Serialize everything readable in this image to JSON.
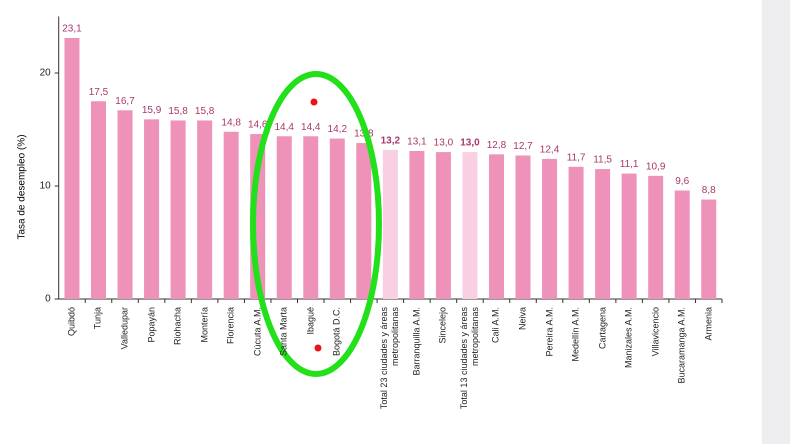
{
  "chart_data": {
    "type": "bar",
    "y_label": "Tasa de desempleo (%)",
    "categories": [
      "Quibdó",
      "Tunja",
      "Valledupar",
      "Popayán",
      "Riohacha",
      "Montería",
      "Florencia",
      "Cúcuta A.M.",
      "Santa Marta",
      "Ibagué",
      "Bogotá D.C.",
      null,
      "Total 23 ciudades y áreas metropolitanas",
      "Barranquilla A.M.",
      "Sincelejo",
      "Total 13 ciudades y áreas metropolitanas",
      "Cali A.M.",
      "Neiva",
      "Pereira A.M.",
      "Medellín A.M.",
      "Cartagena",
      "Manizales A.M.",
      "Villavicencio",
      "Bucaramanga A.M.",
      "Armenia"
    ],
    "values": [
      23.1,
      17.5,
      16.7,
      15.9,
      15.8,
      15.8,
      14.8,
      14.6,
      14.4,
      14.4,
      14.2,
      13.8,
      13.2,
      13.1,
      13.0,
      13.0,
      12.8,
      12.7,
      12.4,
      11.7,
      11.5,
      11.1,
      10.9,
      9.6,
      8.8
    ],
    "value_labels": [
      "23,1",
      "17,5",
      "16,7",
      "15,9",
      "15,8",
      "15,8",
      "14,8",
      "14,6",
      "14,4",
      "14,4",
      "14,2",
      "13,8",
      "13,2",
      "13,1",
      "13,0",
      "13,0",
      "12,8",
      "12,7",
      "12,4",
      "11,7",
      "11,5",
      "11,1",
      "10,9",
      "9,6",
      "8,8"
    ],
    "color": "#ee92b9",
    "highlight_color": "#f9d0e3",
    "highlighted": [
      12,
      15
    ],
    "value_label_color": "#a8376a",
    "ylim": [
      0,
      25
    ],
    "yticks": [
      0,
      10,
      20
    ],
    "grid": false
  }
}
